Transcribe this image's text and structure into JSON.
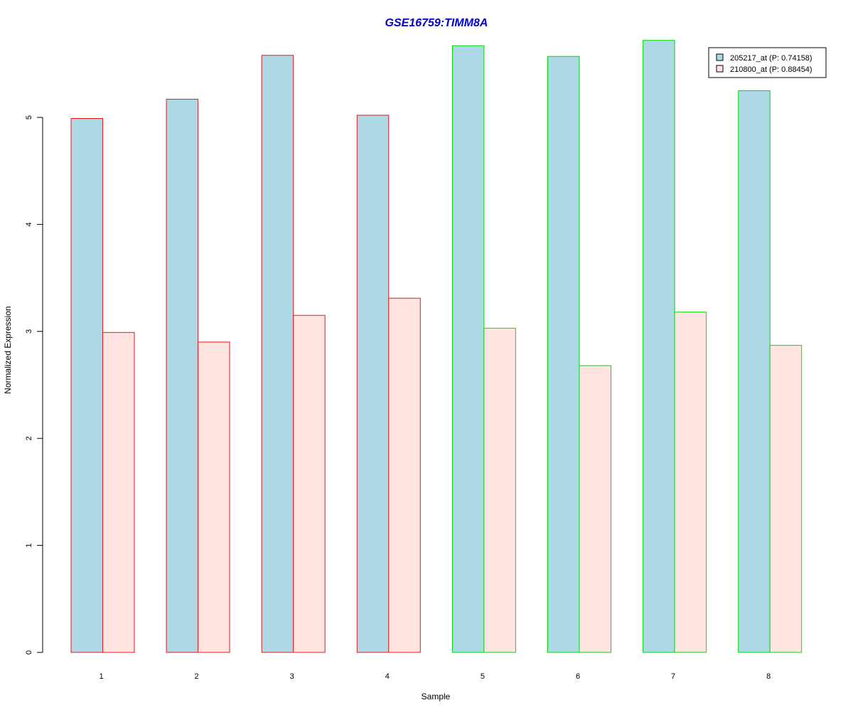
{
  "chart_data": {
    "type": "bar",
    "title": "GSE16759:TIMM8A",
    "xlabel": "Sample",
    "ylabel": "Normalized Expression",
    "categories": [
      "1",
      "2",
      "3",
      "4",
      "5",
      "6",
      "7",
      "8"
    ],
    "y_ticks": [
      "0",
      "1",
      "2",
      "3",
      "4",
      "5"
    ],
    "ylim": [
      0,
      5.7
    ],
    "grid": false,
    "legend_position": "top-right",
    "series": [
      {
        "name": "205217_at (P: 0.74158)",
        "fill": "#add8e6",
        "values": [
          4.99,
          5.17,
          5.58,
          5.02,
          5.67,
          5.57,
          5.72,
          5.25
        ]
      },
      {
        "name": "210800_at (P: 0.88454)",
        "fill": "#ffe4e1",
        "values": [
          2.99,
          2.9,
          3.15,
          3.31,
          3.03,
          2.68,
          3.18,
          2.87
        ]
      }
    ],
    "group_border_colors": [
      "#e31a1c",
      "#e31a1c",
      "#e31a1c",
      "#e31a1c",
      "#00dd00",
      "#00dd00",
      "#00dd00",
      "#00dd00"
    ]
  }
}
